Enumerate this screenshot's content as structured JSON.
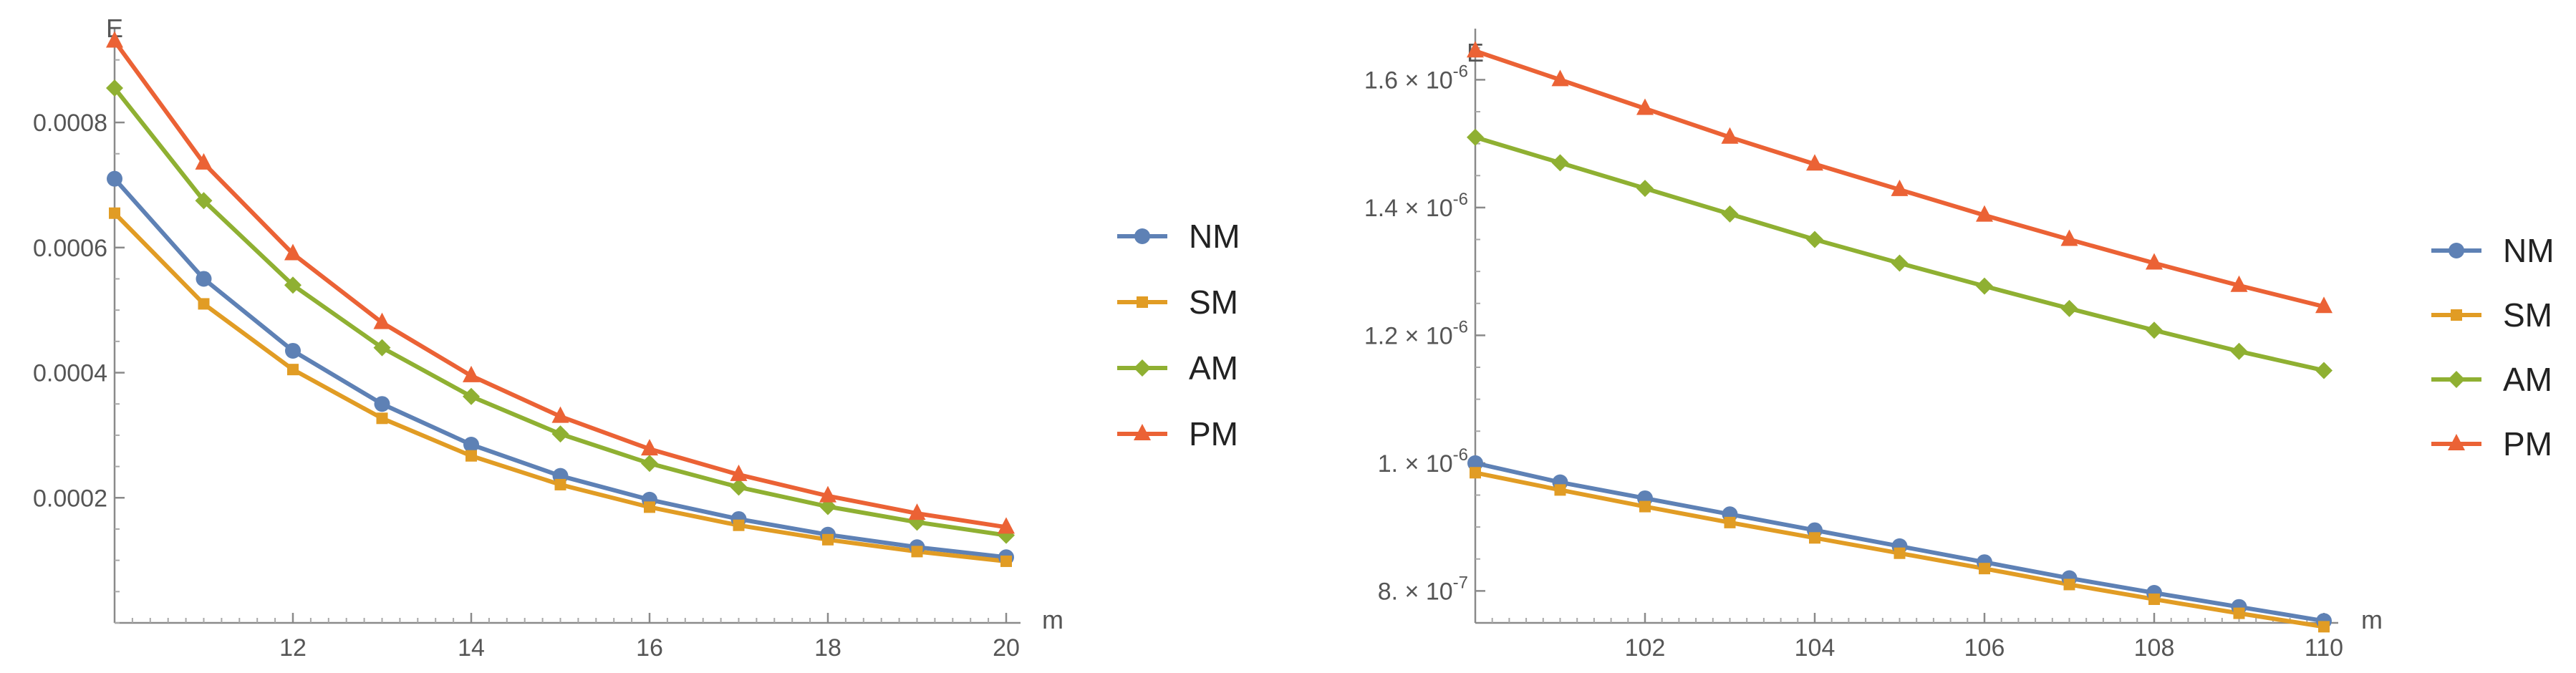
{
  "colors": {
    "NM": "#5E81B5",
    "SM": "#E19C24",
    "AM": "#8FB032",
    "PM": "#EB6235",
    "axis": "#8a8a8a"
  },
  "chart_data": [
    {
      "type": "line",
      "xlabel": "m",
      "ylabel": "E",
      "xlim": [
        10,
        20
      ],
      "ylim": [
        0,
        0.00095
      ],
      "x": [
        10,
        11,
        12,
        13,
        14,
        15,
        16,
        17,
        18,
        19,
        20
      ],
      "xticks": [
        12,
        14,
        16,
        18,
        20
      ],
      "xtick_labels": [
        "12",
        "14",
        "16",
        "18",
        "20"
      ],
      "yticks": [
        0.0002,
        0.0004,
        0.0006,
        0.0008
      ],
      "ytick_labels": [
        "0.0002",
        "0.0004",
        "0.0006",
        "0.0008"
      ],
      "legend_position": "right",
      "series": [
        {
          "name": "NM",
          "marker": "circle",
          "values": [
            0.00071,
            0.00055,
            0.000435,
            0.00035,
            0.000285,
            0.000235,
            0.000197,
            0.000166,
            0.000141,
            0.000121,
            0.000105
          ]
        },
        {
          "name": "SM",
          "marker": "square",
          "values": [
            0.000655,
            0.00051,
            0.000405,
            0.000327,
            0.000267,
            0.000221,
            0.000185,
            0.000156,
            0.000133,
            0.000114,
            9.85e-05
          ]
        },
        {
          "name": "AM",
          "marker": "diamond",
          "values": [
            0.000855,
            0.000675,
            0.00054,
            0.00044,
            0.000362,
            0.000302,
            0.000255,
            0.000217,
            0.000186,
            0.000161,
            0.00014
          ]
        },
        {
          "name": "PM",
          "marker": "triangle",
          "values": [
            0.00093,
            0.000735,
            0.00059,
            0.00048,
            0.000395,
            0.00033,
            0.000278,
            0.000237,
            0.000203,
            0.000175,
            0.000153
          ]
        }
      ]
    },
    {
      "type": "line",
      "xlabel": "m",
      "ylabel": "E",
      "xlim": [
        100,
        110
      ],
      "ylim": [
        7.5e-07,
        1.68e-06
      ],
      "x": [
        100,
        101,
        102,
        103,
        104,
        105,
        106,
        107,
        108,
        109,
        110
      ],
      "xticks": [
        102,
        104,
        106,
        108,
        110
      ],
      "xtick_labels": [
        "102",
        "104",
        "106",
        "108",
        "110"
      ],
      "yticks": [
        8e-07,
        1e-06,
        1.2e-06,
        1.4e-06,
        1.6e-06
      ],
      "ytick_mantissas": [
        "8.",
        "1.",
        "1.2",
        "1.4",
        "1.6"
      ],
      "ytick_times": "×",
      "ytick_exponents": [
        "-7",
        "-6",
        "-6",
        "-6",
        "-6"
      ],
      "legend_position": "right",
      "series": [
        {
          "name": "NM",
          "marker": "circle",
          "values": [
            1e-06,
            9.7e-07,
            9.45e-07,
            9.2e-07,
            8.95e-07,
            8.7e-07,
            8.45e-07,
            8.2e-07,
            7.97e-07,
            7.75e-07,
            7.53e-07
          ]
        },
        {
          "name": "SM",
          "marker": "square",
          "values": [
            9.85e-07,
            9.58e-07,
            9.32e-07,
            9.07e-07,
            8.83e-07,
            8.59e-07,
            8.35e-07,
            8.1e-07,
            7.87e-07,
            7.65e-07,
            7.44e-07
          ]
        },
        {
          "name": "AM",
          "marker": "diamond",
          "values": [
            1.51e-06,
            1.47e-06,
            1.43e-06,
            1.39e-06,
            1.35e-06,
            1.313e-06,
            1.277e-06,
            1.242e-06,
            1.208e-06,
            1.175e-06,
            1.145e-06
          ]
        },
        {
          "name": "PM",
          "marker": "triangle",
          "values": [
            1.645e-06,
            1.6e-06,
            1.555e-06,
            1.51e-06,
            1.468e-06,
            1.428e-06,
            1.388e-06,
            1.35e-06,
            1.313e-06,
            1.278e-06,
            1.245e-06
          ]
        }
      ]
    }
  ]
}
